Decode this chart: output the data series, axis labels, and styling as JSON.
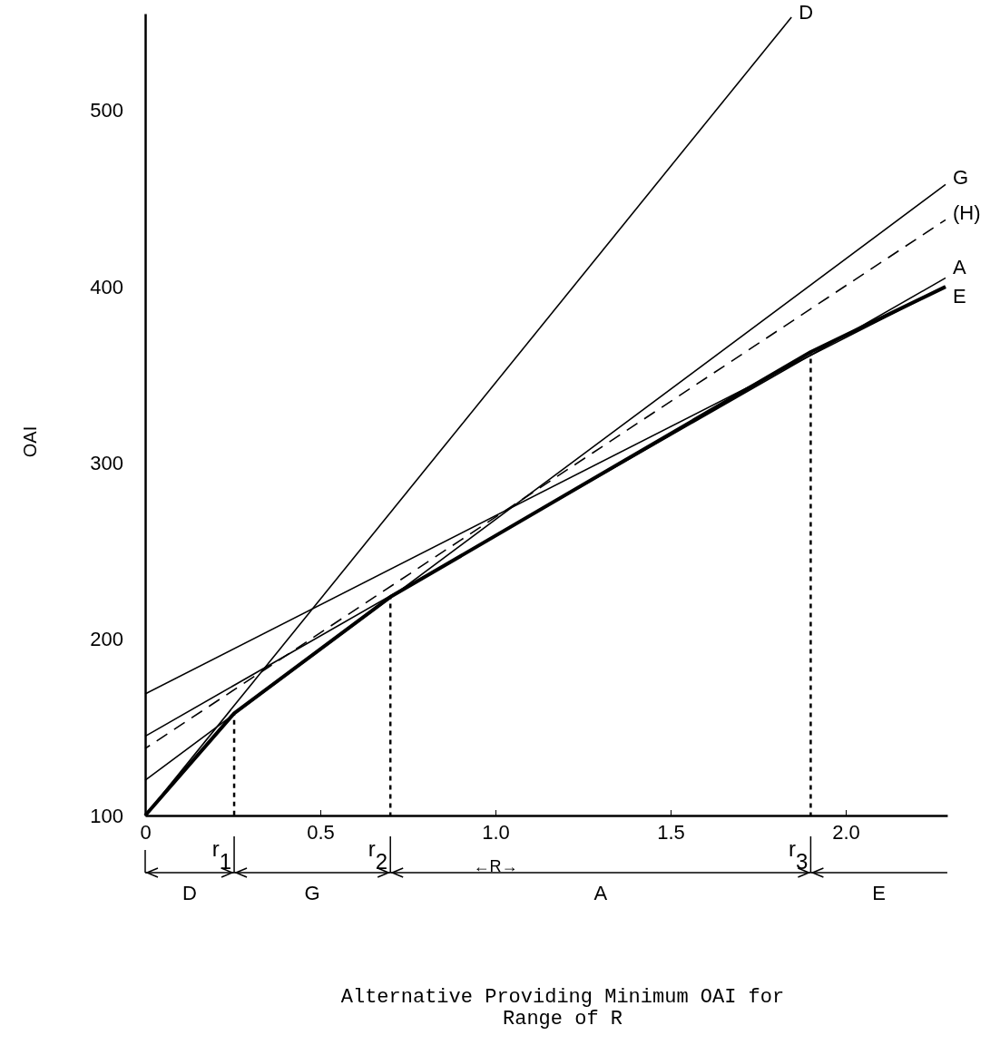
{
  "chart_data": {
    "type": "line",
    "ylabel": "OAI",
    "xlabel": "←R→",
    "xlim": [
      0,
      2.29
    ],
    "ylim": [
      100,
      555
    ],
    "xticks": [
      0,
      0.5,
      {
        "value": 1,
        "label": "1.0"
      },
      1.5,
      {
        "value": 2,
        "label": "2.0"
      }
    ],
    "yticks": [
      100,
      200,
      300,
      400,
      500
    ],
    "grid": false,
    "marker": "none",
    "series": [
      {
        "name": "D",
        "color": "#000000",
        "x": [
          0,
          1.845
        ],
        "values": [
          100,
          553
        ]
      },
      {
        "name": "G",
        "color": "#000000",
        "x": [
          0,
          2.285
        ],
        "values": [
          120,
          458
        ]
      },
      {
        "name": "(H)",
        "color": "#000000",
        "x": [
          0,
          2.285
        ],
        "values": [
          138,
          438
        ],
        "line_style": "dashed"
      },
      {
        "name": "A",
        "color": "#000000",
        "x": [
          0,
          2.285
        ],
        "values": [
          145,
          405
        ]
      },
      {
        "name": "E",
        "color": "#000000",
        "x": [
          0,
          2.285
        ],
        "values": [
          169,
          400
        ]
      },
      {
        "color": "#000000",
        "x": [
          0,
          0.254,
          0.7,
          1.9,
          2.285
        ],
        "values": [
          100,
          158,
          224,
          363,
          400
        ]
      },
      {
        "color": "#000000",
        "x": [
          0.254,
          0.254
        ],
        "values": [
          100,
          158
        ],
        "line_style": "dotted"
      },
      {
        "color": "#000000",
        "x": [
          0.7,
          0.7
        ],
        "values": [
          100,
          224
        ],
        "line_style": "dotted"
      },
      {
        "color": "#000000",
        "x": [
          1.9,
          1.9
        ],
        "values": [
          100,
          363
        ],
        "line_style": "dotted"
      }
    ],
    "annotations": [
      {
        "text": "r$_{1}$",
        "x": 0.254,
        "y": 100
      },
      {
        "text": "r$_{2}$",
        "x": 0.7,
        "y": 100
      },
      {
        "text": "r$_{3}$",
        "x": 1.9,
        "y": 100
      },
      "D",
      "G",
      "A",
      "E",
      "Alternative Providing Minimum OAI for Range of R"
    ]
  }
}
